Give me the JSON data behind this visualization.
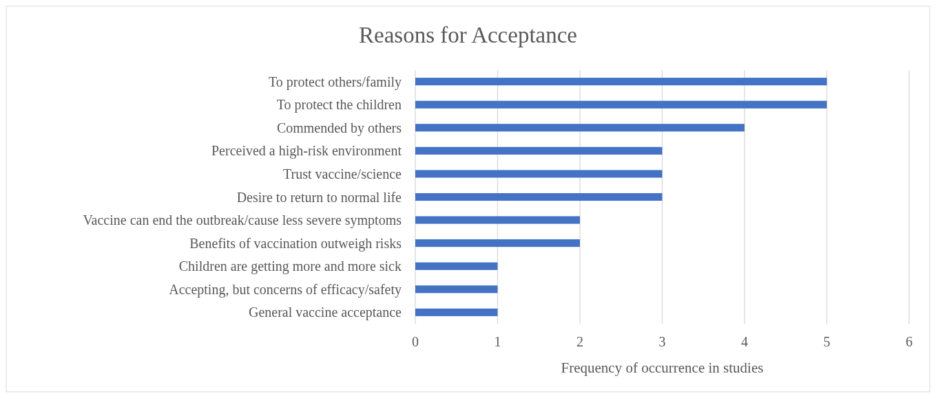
{
  "chart_data": {
    "type": "bar",
    "orientation": "horizontal",
    "title": "Reasons for Acceptance",
    "xlabel": "Frequency of occurrence in studies",
    "categories": [
      "To protect others/family",
      "To protect the children",
      "Commended by others",
      "Perceived a high-risk environment",
      "Trust vaccine/science",
      "Desire to return to normal life",
      "Vaccine can end the outbreak/cause less severe symptoms",
      "Benefits of vaccination outweigh risks",
      "Children are getting more and more sick",
      "Accepting, but concerns of efficacy/safety",
      "General vaccine acceptance"
    ],
    "values": [
      5,
      5,
      4,
      3,
      3,
      3,
      2,
      2,
      1,
      1,
      1
    ],
    "color": "#4472c4",
    "xlim": [
      0,
      6
    ],
    "xticks": [
      0,
      1,
      2,
      3,
      4,
      5,
      6
    ],
    "grid": "x"
  }
}
